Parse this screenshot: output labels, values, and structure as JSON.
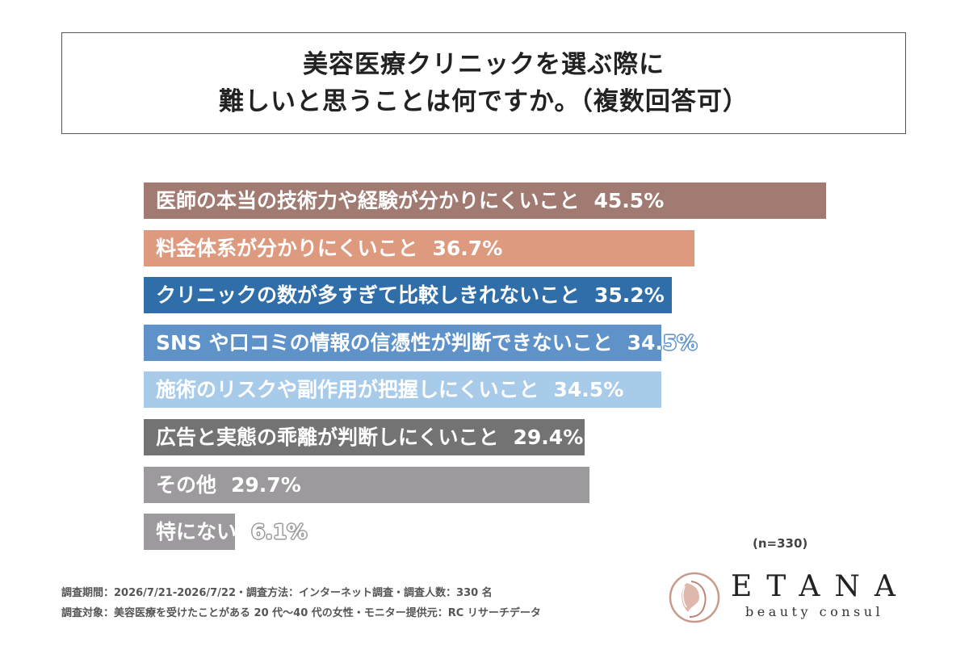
{
  "title": {
    "line1": "美容医療クリニックを選ぶ際に",
    "line2": "難しいと思うことは何ですか。（複数回答可）"
  },
  "chart_data": {
    "type": "bar",
    "orientation": "horizontal",
    "categories": [
      "医師の本当の技術力や経験が分かりにくいこと",
      "料金体系が分かりにくいこと",
      "クリニックの数が多すぎて比較しきれないこと",
      "SNS や口コミの情報の信憑性が判断できないこと",
      "施術のリスクや副作用が把握しにくいこと",
      "広告と実態の乖離が判断しにくいこと",
      "その他",
      "特にない"
    ],
    "values": [
      45.5,
      36.7,
      35.2,
      34.5,
      34.5,
      29.4,
      29.7,
      6.1
    ],
    "value_labels": [
      "45.5%",
      "36.7%",
      "35.2%",
      "34.5%",
      "34.5%",
      "29.4%",
      "29.7%",
      "6.1%"
    ],
    "colors": [
      "#a17a72",
      "#de9a7f",
      "#2f6ea9",
      "#5f92c9",
      "#a9cbea",
      "#747374",
      "#9c9a9c",
      "#9c9a9c"
    ],
    "xlim": [
      0,
      45.5
    ],
    "grid": false,
    "legend": "none"
  },
  "sample_note": "(n=330)",
  "footnotes": {
    "line1": "調査期間：2026/7/21-2026/7/22・調査方法：インターネット調査・調査人数：330 名",
    "line2": "調査対象：美容医療を受けたことがある 20 代～40 代の女性・モニター提供元：RC リサーチデータ"
  },
  "logo": {
    "name": "ETANA",
    "tagline": "beauty consul"
  }
}
